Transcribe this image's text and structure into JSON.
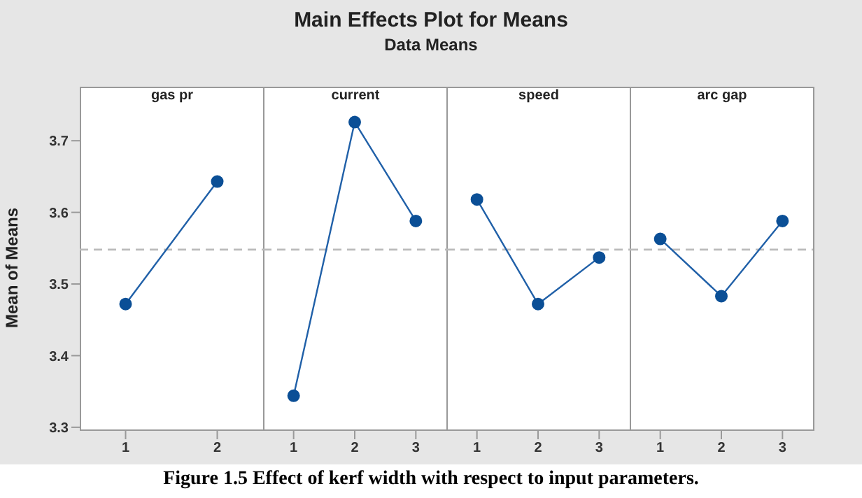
{
  "chart_data": [
    {
      "type": "line",
      "title": "gas pr",
      "ylabel": "Mean of Means",
      "categories": [
        "1",
        "2"
      ],
      "values": [
        3.472,
        3.643
      ],
      "color": "#2060a8",
      "marker": "circle",
      "ylim": [
        3.295,
        3.75
      ],
      "yticks": [
        3.3,
        3.4,
        3.5,
        3.6,
        3.7
      ],
      "ref_lines": [
        {
          "axis": "y",
          "value": 3.548,
          "color": "#bbbbbb",
          "line_style": "dashed"
        }
      ],
      "annotations": [
        "Main Effects Plot for Means",
        "Data Means",
        "Figure 1.5 Effect of kerf width with respect to input parameters."
      ]
    },
    {
      "type": "line",
      "title": "current",
      "categories": [
        "1",
        "2",
        "3"
      ],
      "values": [
        3.344,
        3.726,
        3.588
      ],
      "color": "#2060a8",
      "marker": "circle",
      "ylim": [
        3.295,
        3.75
      ],
      "tick_labels": "x",
      "ref_lines": [
        {
          "axis": "y",
          "value": 3.548,
          "color": "#bbbbbb",
          "line_style": "dashed"
        }
      ]
    },
    {
      "type": "line",
      "title": "speed",
      "categories": [
        "1",
        "2",
        "3"
      ],
      "values": [
        3.618,
        3.472,
        3.537
      ],
      "color": "#2060a8",
      "marker": "circle",
      "ylim": [
        3.295,
        3.75
      ],
      "tick_labels": "x",
      "ref_lines": [
        {
          "axis": "y",
          "value": 3.548,
          "color": "#bbbbbb",
          "line_style": "dashed"
        }
      ]
    },
    {
      "type": "line",
      "title": "arc gap",
      "categories": [
        "1",
        "2",
        "3"
      ],
      "values": [
        3.563,
        3.483,
        3.588
      ],
      "color": "#2060a8",
      "marker": "circle",
      "ylim": [
        3.295,
        3.75
      ],
      "tick_labels": "x",
      "ref_lines": [
        {
          "axis": "y",
          "value": 3.548,
          "color": "#bbbbbb",
          "line_style": "dashed"
        }
      ]
    }
  ]
}
